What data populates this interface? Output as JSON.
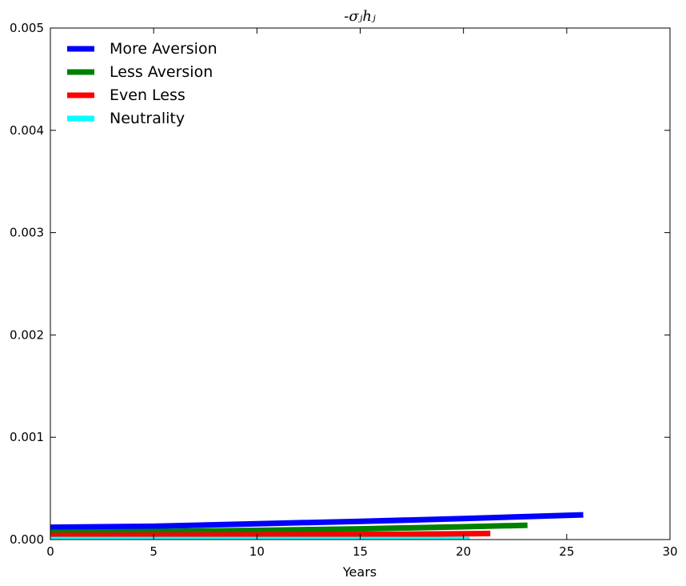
{
  "chart_data": {
    "type": "line",
    "title": "-σⱼhⱼ",
    "xlabel": "Years",
    "ylabel": "",
    "xlim": [
      0,
      30
    ],
    "ylim": [
      0,
      0.005
    ],
    "x_ticks": [
      0,
      5,
      10,
      15,
      20,
      25,
      30
    ],
    "y_ticks": [
      0.0,
      0.001,
      0.002,
      0.003,
      0.004,
      0.005
    ],
    "y_tick_labels": [
      "0.000",
      "0.001",
      "0.002",
      "0.003",
      "0.004",
      "0.005"
    ],
    "grid": false,
    "legend_position": "top-left",
    "series": [
      {
        "name": "More Aversion",
        "color": "#0000ff",
        "x": [
          0,
          5,
          10,
          15,
          20,
          25.8
        ],
        "y": [
          0.00012,
          0.00013,
          0.000155,
          0.000178,
          0.000205,
          0.000242
        ]
      },
      {
        "name": "Less Aversion",
        "color": "#008000",
        "x": [
          0,
          5,
          10,
          15,
          20,
          23.1
        ],
        "y": [
          7e-05,
          7.8e-05,
          9e-05,
          0.000105,
          0.000125,
          0.00014
        ]
      },
      {
        "name": "Even Less",
        "color": "#ff0000",
        "x": [
          0,
          5,
          10,
          15,
          20,
          21.3
        ],
        "y": [
          4e-05,
          4.2e-05,
          4.5e-05,
          5e-05,
          5.7e-05,
          6e-05
        ]
      },
      {
        "name": "Neutrality",
        "color": "#00ffff",
        "x": [
          0,
          5,
          10,
          15,
          20,
          20.3
        ],
        "y": [
          0.0,
          0.0,
          0.0,
          0.0,
          0.0,
          0.0
        ]
      }
    ]
  }
}
